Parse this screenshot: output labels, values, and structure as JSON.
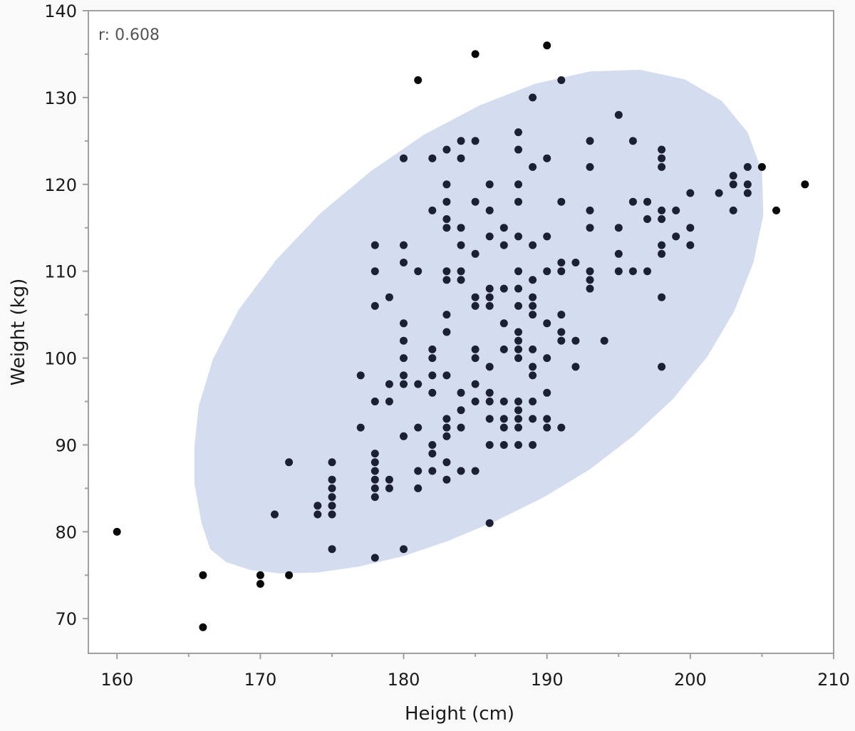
{
  "chart_data": {
    "type": "scatter",
    "xlabel": "Height (cm)",
    "ylabel": "Weight (kg)",
    "xlim": [
      158,
      210
    ],
    "ylim": [
      66,
      140
    ],
    "xticks": [
      160,
      170,
      180,
      190,
      200,
      210
    ],
    "yticks": [
      70,
      80,
      90,
      100,
      110,
      120,
      130,
      140
    ],
    "annotation": "r: 0.608",
    "ellipse_color": "#d4ddef",
    "point_color": "#0a0a0a",
    "inside_point_color": "#1b2133",
    "ellipse_outline": [
      [
        165.9,
        81
      ],
      [
        166.5,
        78
      ],
      [
        167.6,
        76.5
      ],
      [
        169.3,
        75.6
      ],
      [
        171.4,
        75.2
      ],
      [
        174,
        75.3
      ],
      [
        176.9,
        76
      ],
      [
        180,
        77.2
      ],
      [
        183.2,
        79
      ],
      [
        186.5,
        81.3
      ],
      [
        189.8,
        84
      ],
      [
        193,
        87.2
      ],
      [
        196,
        91
      ],
      [
        198.8,
        95.3
      ],
      [
        201.2,
        100.2
      ],
      [
        203.1,
        105.5
      ],
      [
        204.4,
        111
      ],
      [
        205.1,
        116.5
      ],
      [
        205,
        121.5
      ],
      [
        204,
        126
      ],
      [
        202.2,
        129.6
      ],
      [
        199.6,
        132.1
      ],
      [
        196.5,
        133.2
      ],
      [
        193,
        133
      ],
      [
        189.2,
        131.6
      ],
      [
        185.3,
        129.1
      ],
      [
        181.4,
        125.7
      ],
      [
        177.7,
        121.5
      ],
      [
        174.2,
        116.7
      ],
      [
        171.1,
        111.3
      ],
      [
        168.5,
        105.6
      ],
      [
        166.7,
        99.9
      ],
      [
        165.7,
        94.5
      ],
      [
        165.4,
        89.9
      ],
      [
        165.4,
        85.5
      ]
    ],
    "points": [
      [
        160,
        80
      ],
      [
        166,
        75
      ],
      [
        166,
        69
      ],
      [
        170,
        75
      ],
      [
        170,
        74
      ],
      [
        172,
        75
      ],
      [
        172,
        88
      ],
      [
        171,
        82
      ],
      [
        174,
        83
      ],
      [
        174,
        82
      ],
      [
        175,
        88
      ],
      [
        175,
        86
      ],
      [
        175,
        85
      ],
      [
        175,
        84
      ],
      [
        175,
        83
      ],
      [
        175,
        82
      ],
      [
        175,
        78
      ],
      [
        177,
        98
      ],
      [
        177,
        92
      ],
      [
        178,
        113
      ],
      [
        178,
        110
      ],
      [
        178,
        106
      ],
      [
        178,
        95
      ],
      [
        178,
        89
      ],
      [
        178,
        88
      ],
      [
        178,
        87
      ],
      [
        178,
        86
      ],
      [
        178,
        85
      ],
      [
        178,
        84
      ],
      [
        178,
        77
      ],
      [
        179,
        107
      ],
      [
        179,
        97
      ],
      [
        179,
        95
      ],
      [
        179,
        86
      ],
      [
        179,
        85
      ],
      [
        180,
        123
      ],
      [
        180,
        113
      ],
      [
        180,
        111
      ],
      [
        180,
        104
      ],
      [
        180,
        102
      ],
      [
        180,
        100
      ],
      [
        180,
        98
      ],
      [
        180,
        97
      ],
      [
        180,
        91
      ],
      [
        180,
        78
      ],
      [
        181,
        132
      ],
      [
        181,
        110
      ],
      [
        181,
        97
      ],
      [
        181,
        92
      ],
      [
        181,
        87
      ],
      [
        181,
        85
      ],
      [
        182,
        123
      ],
      [
        182,
        117
      ],
      [
        182,
        101
      ],
      [
        182,
        100
      ],
      [
        182,
        98
      ],
      [
        182,
        96
      ],
      [
        182,
        90
      ],
      [
        182,
        89
      ],
      [
        182,
        87
      ],
      [
        183,
        124
      ],
      [
        183,
        120
      ],
      [
        183,
        118
      ],
      [
        183,
        116
      ],
      [
        183,
        115
      ],
      [
        183,
        110
      ],
      [
        183,
        109
      ],
      [
        183,
        105
      ],
      [
        183,
        103
      ],
      [
        183,
        98
      ],
      [
        183,
        93
      ],
      [
        183,
        92
      ],
      [
        183,
        91
      ],
      [
        183,
        88
      ],
      [
        183,
        86
      ],
      [
        184,
        125
      ],
      [
        184,
        123
      ],
      [
        184,
        115
      ],
      [
        184,
        113
      ],
      [
        184,
        110
      ],
      [
        184,
        109
      ],
      [
        184,
        96
      ],
      [
        184,
        94
      ],
      [
        184,
        92
      ],
      [
        184,
        87
      ],
      [
        185,
        135
      ],
      [
        185,
        125
      ],
      [
        185,
        118
      ],
      [
        185,
        112
      ],
      [
        185,
        107
      ],
      [
        185,
        106
      ],
      [
        185,
        101
      ],
      [
        185,
        100
      ],
      [
        185,
        97
      ],
      [
        185,
        95
      ],
      [
        185,
        87
      ],
      [
        186,
        120
      ],
      [
        186,
        117
      ],
      [
        186,
        114
      ],
      [
        186,
        108
      ],
      [
        186,
        107
      ],
      [
        186,
        106
      ],
      [
        186,
        99
      ],
      [
        186,
        96
      ],
      [
        186,
        95
      ],
      [
        186,
        93
      ],
      [
        186,
        90
      ],
      [
        186,
        81
      ],
      [
        187,
        115
      ],
      [
        187,
        113
      ],
      [
        187,
        108
      ],
      [
        187,
        104
      ],
      [
        187,
        101
      ],
      [
        187,
        95
      ],
      [
        187,
        93
      ],
      [
        187,
        92
      ],
      [
        187,
        90
      ],
      [
        188,
        126
      ],
      [
        188,
        124
      ],
      [
        188,
        120
      ],
      [
        188,
        118
      ],
      [
        188,
        114
      ],
      [
        188,
        110
      ],
      [
        188,
        108
      ],
      [
        188,
        106
      ],
      [
        188,
        103
      ],
      [
        188,
        102
      ],
      [
        188,
        101
      ],
      [
        188,
        100
      ],
      [
        188,
        95
      ],
      [
        188,
        94
      ],
      [
        188,
        93
      ],
      [
        188,
        92
      ],
      [
        188,
        90
      ],
      [
        189,
        130
      ],
      [
        189,
        122
      ],
      [
        189,
        113
      ],
      [
        189,
        109
      ],
      [
        189,
        107
      ],
      [
        189,
        106
      ],
      [
        189,
        105
      ],
      [
        189,
        101
      ],
      [
        189,
        99
      ],
      [
        189,
        98
      ],
      [
        189,
        95
      ],
      [
        189,
        93
      ],
      [
        189,
        90
      ],
      [
        190,
        136
      ],
      [
        190,
        123
      ],
      [
        190,
        114
      ],
      [
        190,
        110
      ],
      [
        190,
        104
      ],
      [
        190,
        100
      ],
      [
        190,
        96
      ],
      [
        190,
        93
      ],
      [
        190,
        92
      ],
      [
        191,
        132
      ],
      [
        191,
        118
      ],
      [
        191,
        111
      ],
      [
        191,
        110
      ],
      [
        191,
        105
      ],
      [
        191,
        103
      ],
      [
        191,
        102
      ],
      [
        191,
        92
      ],
      [
        192,
        111
      ],
      [
        192,
        102
      ],
      [
        192,
        99
      ],
      [
        193,
        125
      ],
      [
        193,
        122
      ],
      [
        193,
        117
      ],
      [
        193,
        115
      ],
      [
        193,
        110
      ],
      [
        193,
        109
      ],
      [
        193,
        108
      ],
      [
        194,
        102
      ],
      [
        195,
        128
      ],
      [
        195,
        115
      ],
      [
        195,
        112
      ],
      [
        195,
        110
      ],
      [
        196,
        125
      ],
      [
        196,
        118
      ],
      [
        196,
        110
      ],
      [
        197,
        118
      ],
      [
        197,
        116
      ],
      [
        197,
        110
      ],
      [
        198,
        124
      ],
      [
        198,
        123
      ],
      [
        198,
        122
      ],
      [
        198,
        117
      ],
      [
        198,
        116
      ],
      [
        198,
        113
      ],
      [
        198,
        112
      ],
      [
        198,
        107
      ],
      [
        198,
        99
      ],
      [
        199,
        117
      ],
      [
        199,
        114
      ],
      [
        200,
        119
      ],
      [
        200,
        115
      ],
      [
        200,
        113
      ],
      [
        202,
        119
      ],
      [
        203,
        121
      ],
      [
        203,
        120
      ],
      [
        203,
        117
      ],
      [
        204,
        122
      ],
      [
        204,
        120
      ],
      [
        204,
        119
      ],
      [
        205,
        122
      ],
      [
        206,
        117
      ],
      [
        208,
        120
      ]
    ]
  }
}
